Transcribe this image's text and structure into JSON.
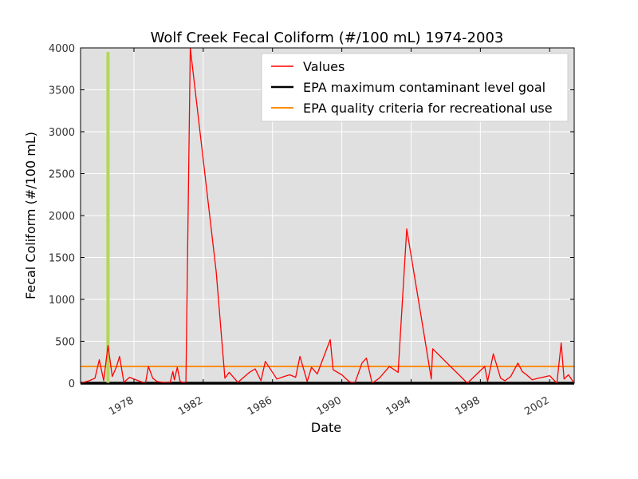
{
  "chart_data": {
    "type": "line",
    "title": "Wolf Creek Fecal Coliform (#/100 mL) 1974-2003",
    "xlabel": "Date",
    "ylabel": "Fecal Coliform (#/100 mL)",
    "xlim": [
      "1974-12-01",
      "2003-06-01"
    ],
    "ylim": [
      0,
      4000
    ],
    "x_ticks": [
      "1978",
      "1982",
      "1986",
      "1990",
      "1994",
      "1998",
      "2002"
    ],
    "y_ticks": [
      0,
      500,
      1000,
      1500,
      2000,
      2500,
      3000,
      3500,
      4000
    ],
    "grid": true,
    "legend_position": "top-right",
    "colors": {
      "background": "#e0e0e0",
      "values": "#ff0000",
      "epa_mclg": "#000000",
      "epa_recreational": "#ff8c00",
      "highlight": "#b5d55a"
    },
    "series": [
      {
        "name": "Values",
        "color": "#ff0000",
        "points": [
          [
            "1974-12-01",
            0
          ],
          [
            "1975-06-01",
            30
          ],
          [
            "1975-10-01",
            60
          ],
          [
            "1976-01-01",
            280
          ],
          [
            "1976-04-01",
            30
          ],
          [
            "1976-07-01",
            450
          ],
          [
            "1976-10-01",
            80
          ],
          [
            "1977-01-01",
            200
          ],
          [
            "1977-03-01",
            320
          ],
          [
            "1977-06-01",
            10
          ],
          [
            "1977-10-01",
            70
          ],
          [
            "1978-04-01",
            30
          ],
          [
            "1978-09-01",
            0
          ],
          [
            "1978-11-01",
            200
          ],
          [
            "1979-02-01",
            60
          ],
          [
            "1979-05-01",
            20
          ],
          [
            "1979-09-01",
            10
          ],
          [
            "1980-02-01",
            5
          ],
          [
            "1980-04-01",
            140
          ],
          [
            "1980-05-01",
            40
          ],
          [
            "1980-07-01",
            190
          ],
          [
            "1980-09-01",
            20
          ],
          [
            "1981-01-01",
            0
          ],
          [
            "1981-04-01",
            4000
          ],
          [
            "1982-10-01",
            1330
          ],
          [
            "1983-04-01",
            60
          ],
          [
            "1983-07-01",
            130
          ],
          [
            "1984-01-01",
            10
          ],
          [
            "1984-09-01",
            130
          ],
          [
            "1985-01-01",
            170
          ],
          [
            "1985-05-01",
            30
          ],
          [
            "1985-08-01",
            260
          ],
          [
            "1986-04-01",
            50
          ],
          [
            "1986-09-01",
            80
          ],
          [
            "1987-01-01",
            100
          ],
          [
            "1987-05-01",
            70
          ],
          [
            "1987-08-01",
            320
          ],
          [
            "1988-01-01",
            20
          ],
          [
            "1988-04-01",
            190
          ],
          [
            "1988-08-01",
            110
          ],
          [
            "1989-05-01",
            520
          ],
          [
            "1989-07-01",
            160
          ],
          [
            "1990-01-01",
            100
          ],
          [
            "1990-06-01",
            20
          ],
          [
            "1990-10-01",
            0
          ],
          [
            "1991-03-01",
            240
          ],
          [
            "1991-06-01",
            300
          ],
          [
            "1991-10-01",
            0
          ],
          [
            "1992-03-01",
            60
          ],
          [
            "1992-10-01",
            200
          ],
          [
            "1993-04-01",
            130
          ],
          [
            "1993-10-01",
            1840
          ],
          [
            "1994-10-01",
            580
          ],
          [
            "1995-03-01",
            50
          ],
          [
            "1995-04-01",
            410
          ],
          [
            "1997-04-01",
            0
          ],
          [
            "1998-04-01",
            200
          ],
          [
            "1998-06-01",
            20
          ],
          [
            "1998-10-01",
            350
          ],
          [
            "1999-03-01",
            60
          ],
          [
            "1999-06-01",
            30
          ],
          [
            "1999-10-01",
            80
          ],
          [
            "2000-03-01",
            240
          ],
          [
            "2000-06-01",
            140
          ],
          [
            "2000-09-01",
            100
          ],
          [
            "2001-01-01",
            40
          ],
          [
            "2001-05-01",
            60
          ],
          [
            "2001-08-01",
            70
          ],
          [
            "2002-01-01",
            90
          ],
          [
            "2002-06-01",
            0
          ],
          [
            "2002-09-01",
            480
          ],
          [
            "2002-11-01",
            50
          ],
          [
            "2003-02-01",
            100
          ],
          [
            "2003-06-01",
            0
          ]
        ]
      },
      {
        "name": "EPA maximum contaminant level goal",
        "color": "#000000",
        "y": 0
      },
      {
        "name": "EPA quality criteria for recreational use",
        "color": "#ff8c00",
        "y": 200
      }
    ],
    "highlight": {
      "color": "#b5d55a",
      "x": "1976-07-01",
      "y_range": [
        0,
        3950
      ]
    }
  }
}
